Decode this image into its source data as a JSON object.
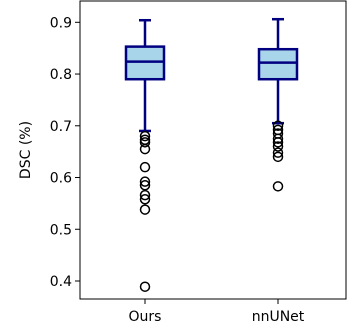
{
  "chart_data": {
    "type": "box",
    "title": "",
    "xlabel": "",
    "ylabel": "DSC (%)",
    "ylim": [
      0.36,
      0.92
    ],
    "yticks": [
      "0.4",
      "0.5",
      "0.6",
      "0.7",
      "0.8",
      "0.9"
    ],
    "categories": [
      "Ours",
      "nnUNet"
    ],
    "grid": false,
    "colors": {
      "box_fill": "#a8d5ea",
      "box_edge": "#000080",
      "outlier": "#000000"
    },
    "boxes": [
      {
        "label": "Ours",
        "whisker_low": 0.69,
        "q1": 0.79,
        "median": 0.824,
        "q3": 0.853,
        "whisker_high": 0.904,
        "outliers": [
          0.68,
          0.673,
          0.668,
          0.655,
          0.62,
          0.592,
          0.585,
          0.566,
          0.558,
          0.538,
          0.389
        ]
      },
      {
        "label": "nnUNet",
        "whisker_low": 0.705,
        "q1": 0.79,
        "median": 0.822,
        "q3": 0.848,
        "whisker_high": 0.906,
        "outliers": [
          0.7,
          0.692,
          0.685,
          0.675,
          0.668,
          0.66,
          0.648,
          0.64,
          0.583
        ]
      }
    ]
  }
}
